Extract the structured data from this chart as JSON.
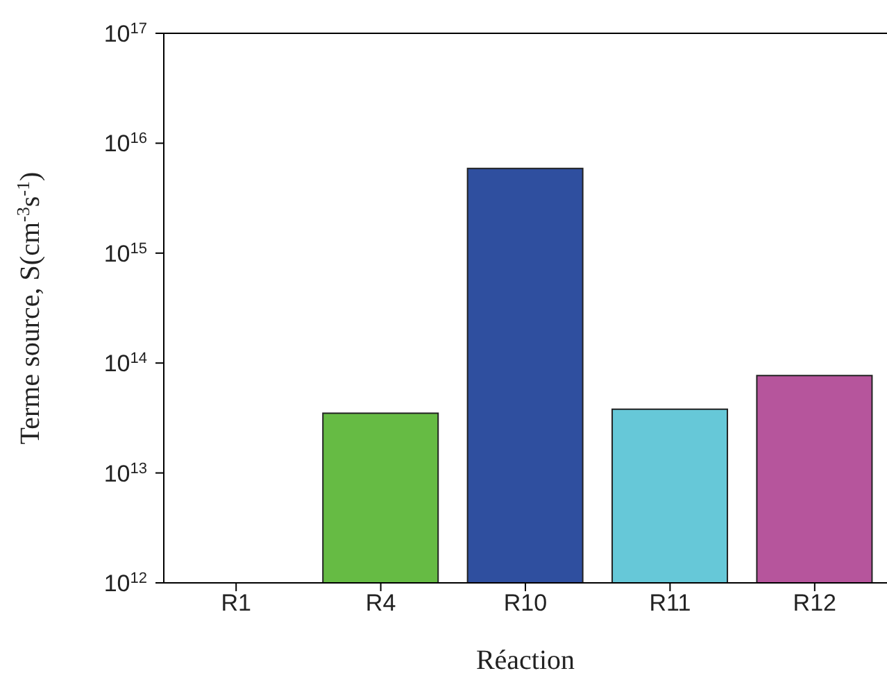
{
  "chart_data": {
    "type": "bar",
    "xlabel": "Réaction",
    "ylabel": "Terme source, S(cm$^{-3}$s$^{-1}$)",
    "categories": [
      "R1",
      "R4",
      "R10",
      "R11",
      "R12"
    ],
    "values": [
      null,
      35000000000000.0,
      5900000000000000.0,
      38000000000000.0,
      77000000000000.0
    ],
    "colors": [
      "#888888",
      "#66bb44",
      "#2f4f9f",
      "#66c8d8",
      "#b6559c"
    ],
    "log": "y",
    "ylim": [
      1000000000000.0,
      1e+17
    ],
    "yticks": [
      {
        "value": 1000000000000.0,
        "label": "10$^{12}$"
      },
      {
        "value": 10000000000000.0,
        "label": "10$^{13}$"
      },
      {
        "value": 100000000000000.0,
        "label": "10$^{14}$"
      },
      {
        "value": 1000000000000000.0,
        "label": "10$^{15}$"
      },
      {
        "value": 1e+16,
        "label": "10$^{16}$"
      },
      {
        "value": 1e+17,
        "label": "10$^{17}$"
      }
    ]
  }
}
